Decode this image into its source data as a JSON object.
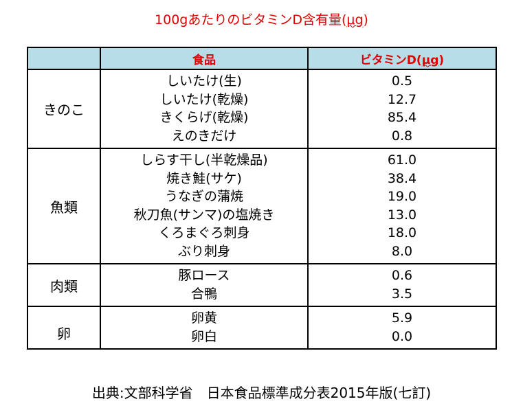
{
  "title_prefix": "100gあたりのビタミンD含有量(",
  "title_unit": "μg",
  "title_suffix": ")",
  "colors": {
    "title": "#e00000",
    "header_bg": "#b7dde8",
    "header_text": "#e00000",
    "border": "#000000"
  },
  "table": {
    "headers": {
      "category": "",
      "food_label": "食品",
      "vitamin_prefix": "ビタミンD(",
      "vitamin_unit": "μg",
      "vitamin_suffix": ")"
    },
    "groups": [
      {
        "category": "きのこ",
        "foods": [
          "しいたけ(生)",
          "しいたけ(乾燥)",
          "きくらげ(乾燥)",
          "えのきだけ"
        ],
        "values": [
          "0.5",
          "12.7",
          "85.4",
          "0.8"
        ]
      },
      {
        "category": "魚類",
        "foods": [
          "しらす干し(半乾燥品)",
          "焼き鮭(サケ)",
          "うなぎの蒲焼",
          "秋刀魚(サンマ)の塩焼き",
          "くろまぐろ刺身",
          "ぶり刺身"
        ],
        "values": [
          "61.0",
          "38.4",
          "19.0",
          "13.0",
          "18.0",
          "8.0"
        ]
      },
      {
        "category": "肉類",
        "foods": [
          "豚ロース",
          "合鴨"
        ],
        "values": [
          "0.6",
          "3.5"
        ]
      },
      {
        "category": "卵",
        "foods": [
          "卵黄",
          "卵白"
        ],
        "values": [
          "5.9",
          "0.0"
        ]
      }
    ]
  },
  "source": "出典:文部科学省　日本食品標準成分表2015年版(七訂)"
}
